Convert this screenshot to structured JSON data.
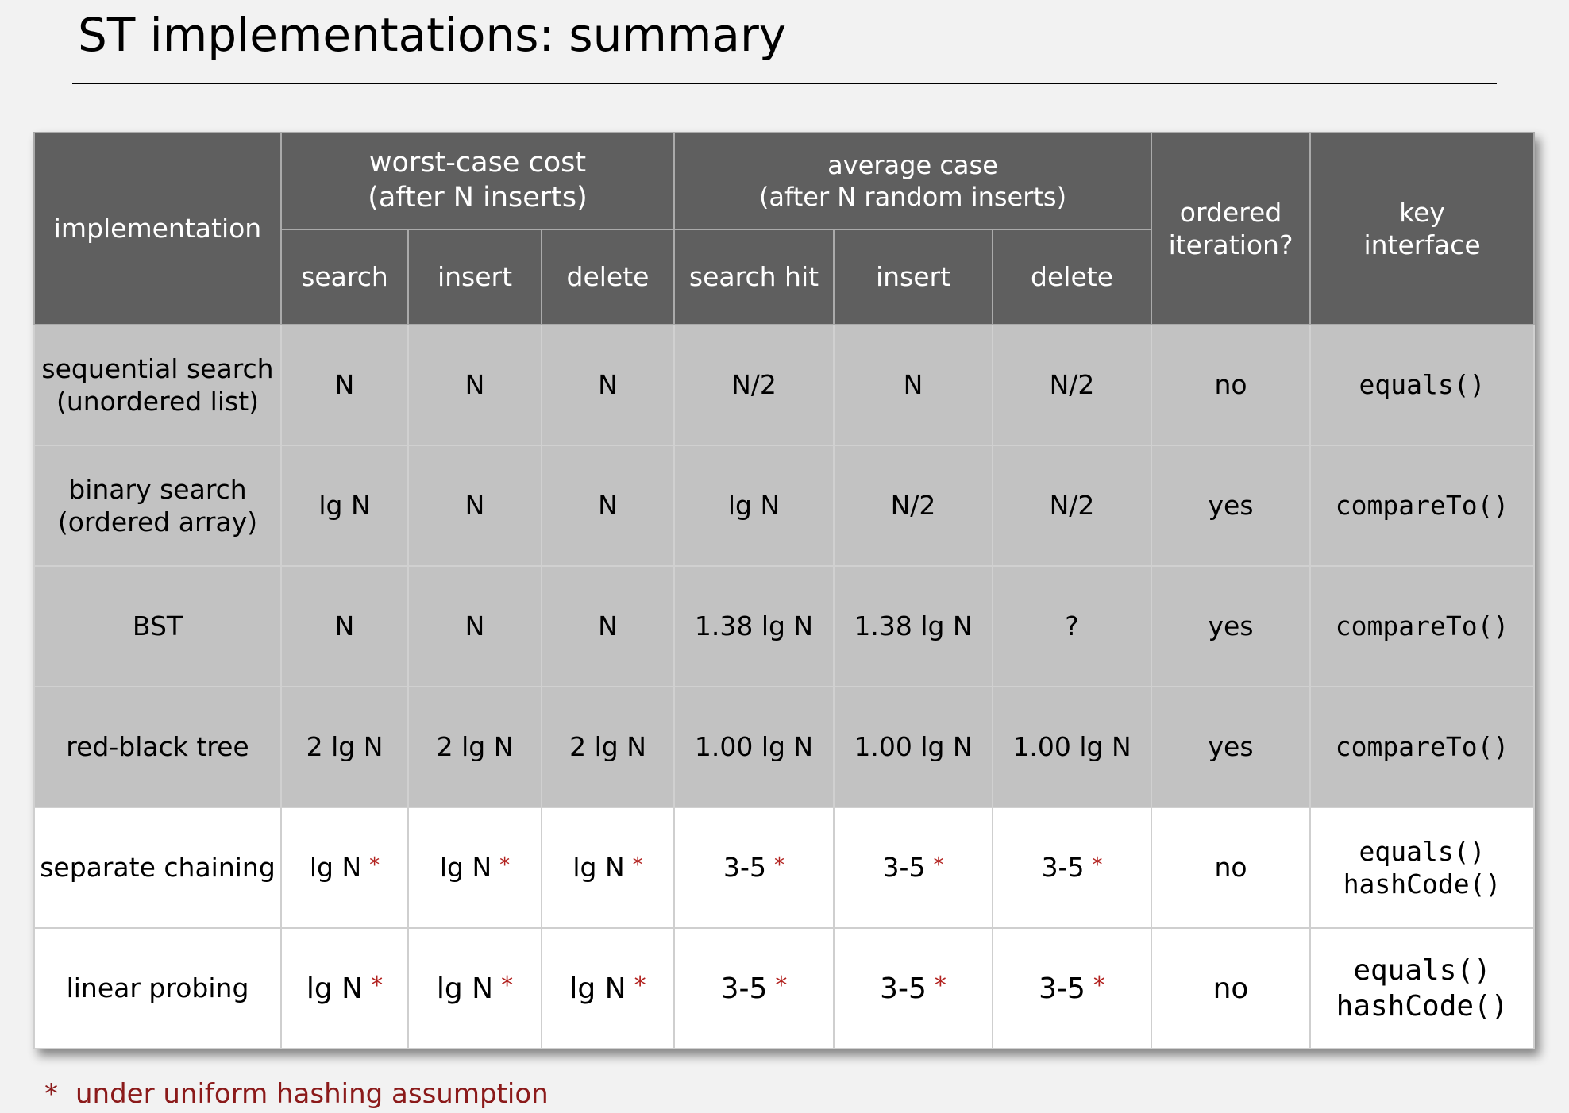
{
  "title": "ST implementations:  summary",
  "table": {
    "header": {
      "implementation": "implementation",
      "worst_case": {
        "line1": "worst-case cost",
        "line2": "(after N inserts)",
        "cols": [
          "search",
          "insert",
          "delete"
        ]
      },
      "average_case": {
        "line1": "average case",
        "line2": "(after N random inserts)",
        "cols": [
          "search hit",
          "insert",
          "delete"
        ]
      },
      "ordered": {
        "line1": "ordered",
        "line2": "iteration?"
      },
      "key": {
        "line1": "key",
        "line2": "interface"
      }
    },
    "rows": [
      {
        "impl": [
          "sequential search",
          "(unordered list)"
        ],
        "cells": [
          "N",
          "N",
          "N",
          "N/2",
          "N",
          "N/2"
        ],
        "ordered": "no",
        "key": [
          "equals()"
        ]
      },
      {
        "impl": [
          "binary search",
          "(ordered array)"
        ],
        "cells": [
          "lg N",
          "N",
          "N",
          "lg N",
          "N/2",
          "N/2"
        ],
        "ordered": "yes",
        "key": [
          "compareTo()"
        ]
      },
      {
        "impl": [
          "BST"
        ],
        "cells": [
          "N",
          "N",
          "N",
          "1.38 lg N",
          "1.38 lg N",
          "?"
        ],
        "ordered": "yes",
        "key": [
          "compareTo()"
        ]
      },
      {
        "impl": [
          "red-black tree"
        ],
        "cells": [
          "2 lg N",
          "2 lg N",
          "2 lg N",
          "1.00 lg N",
          "1.00 lg N",
          "1.00 lg N"
        ],
        "ordered": "yes",
        "key": [
          "compareTo()"
        ]
      },
      {
        "impl": [
          "separate chaining"
        ],
        "cells": [
          "lg N",
          "lg N",
          "lg N",
          "3-5",
          "3-5",
          "3-5"
        ],
        "ordered": "no",
        "key": [
          "equals()",
          "hashCode()"
        ]
      },
      {
        "impl": [
          "linear probing"
        ],
        "cells": [
          "lg N",
          "lg N",
          "lg N",
          "3-5",
          "3-5",
          "3-5"
        ],
        "ordered": "no",
        "key": [
          "equals()",
          "hashCode()"
        ]
      }
    ],
    "asterisk": "*"
  },
  "footnote": {
    "marker": "*",
    "text": "under uniform hashing assumption"
  },
  "colors": {
    "background": "#f2f2f2",
    "header_bg": "#5f5f5f",
    "header_text": "#ffffff",
    "tree_rows_bg": "#c2c2c2",
    "hash_rows_bg": "#ffffff",
    "footnote_red": "#8b1a1a",
    "asterisk_red": "#b2221f"
  }
}
